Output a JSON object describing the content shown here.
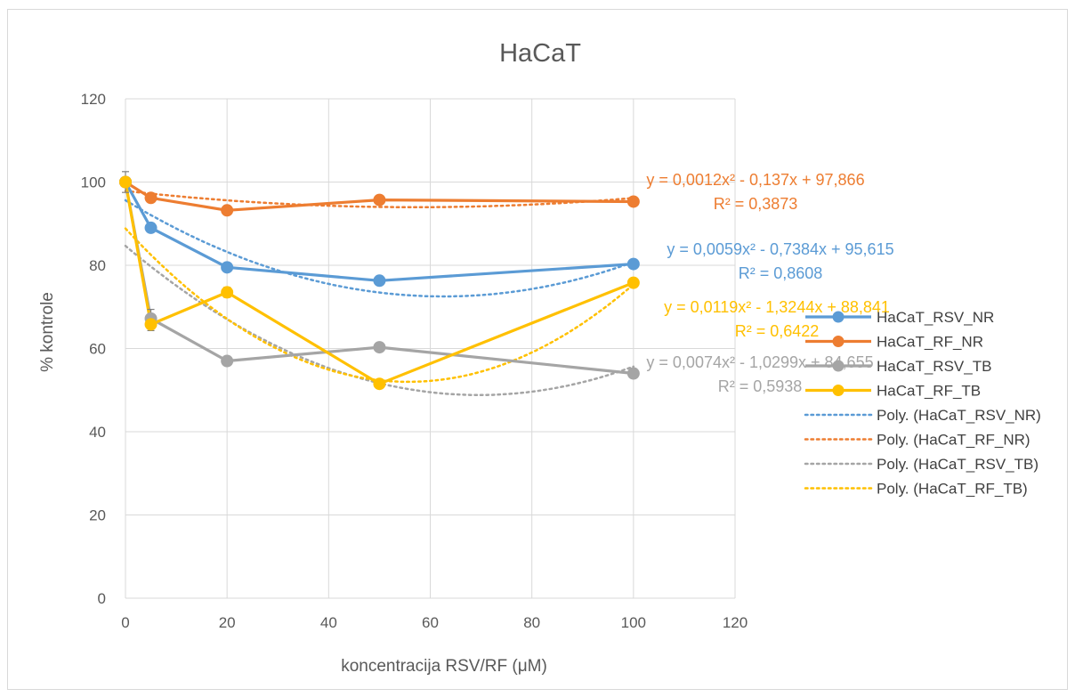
{
  "chart_data": {
    "type": "line",
    "title": "HaCaT",
    "xlabel": "koncentracija RSV/RF (μM)",
    "ylabel": "% kontrole",
    "xlim": [
      0,
      120
    ],
    "ylim": [
      0,
      120
    ],
    "xticks": [
      0,
      20,
      40,
      60,
      80,
      100,
      120
    ],
    "yticks": [
      0,
      20,
      40,
      60,
      80,
      100,
      120
    ],
    "grid": true,
    "legend_position": "right",
    "x": [
      0,
      5,
      20,
      50,
      100
    ],
    "series": [
      {
        "name": "HaCaT_RSV_NR",
        "color": "#5b9bd5",
        "values": [
          100,
          89,
          79.5,
          76.3,
          80.3
        ]
      },
      {
        "name": "HaCaT_RF_NR",
        "color": "#ed7d31",
        "values": [
          100,
          96.2,
          93.2,
          95.7,
          95.3
        ]
      },
      {
        "name": "HaCaT_RSV_TB",
        "color": "#a5a5a5",
        "values": [
          100,
          67.2,
          57,
          60.3,
          54
        ]
      },
      {
        "name": "HaCaT_RF_TB",
        "color": "#ffc000",
        "values": [
          100,
          65.8,
          73.5,
          51.5,
          75.8
        ]
      }
    ],
    "trendlines": [
      {
        "name": "Poly. (HaCaT_RSV_NR)",
        "color": "#5b9bd5",
        "coefficients": [
          0.0059,
          -0.7384,
          95.615
        ],
        "equation": "y = 0,0059x² - 0,7384x + 95,615",
        "r2": "R² = 0,8608"
      },
      {
        "name": "Poly. (HaCaT_RF_NR)",
        "color": "#ed7d31",
        "coefficients": [
          0.0012,
          -0.137,
          97.866
        ],
        "equation": "y = 0,0012x² - 0,137x + 97,866",
        "r2": "R² = 0,3873"
      },
      {
        "name": "Poly. (HaCaT_RSV_TB)",
        "color": "#a5a5a5",
        "coefficients": [
          0.0074,
          -1.0299,
          84.655
        ],
        "equation": "y = 0,0074x² - 1,0299x + 84,655",
        "r2": "R² = 0,5938"
      },
      {
        "name": "Poly. (HaCaT_RF_TB)",
        "color": "#ffc000",
        "coefficients": [
          0.0119,
          -1.3244,
          88.841
        ],
        "equation": "y = 0,0119x² - 1,3244x + 88,841",
        "r2": "R² = 0,6422"
      }
    ],
    "error_bars": [
      {
        "series": "HaCaT_RSV_TB",
        "x": 0,
        "plus": 2.5,
        "minus": 2.5
      },
      {
        "series": "HaCaT_RSV_TB",
        "x": 5,
        "plus": 2.2,
        "minus": 2.2
      },
      {
        "series": "HaCaT_RF_TB",
        "x": 5,
        "plus": 1.5,
        "minus": 1.5
      },
      {
        "series": "HaCaT_RF_TB",
        "x": 20,
        "plus": 1.2,
        "minus": 1.2
      }
    ]
  }
}
